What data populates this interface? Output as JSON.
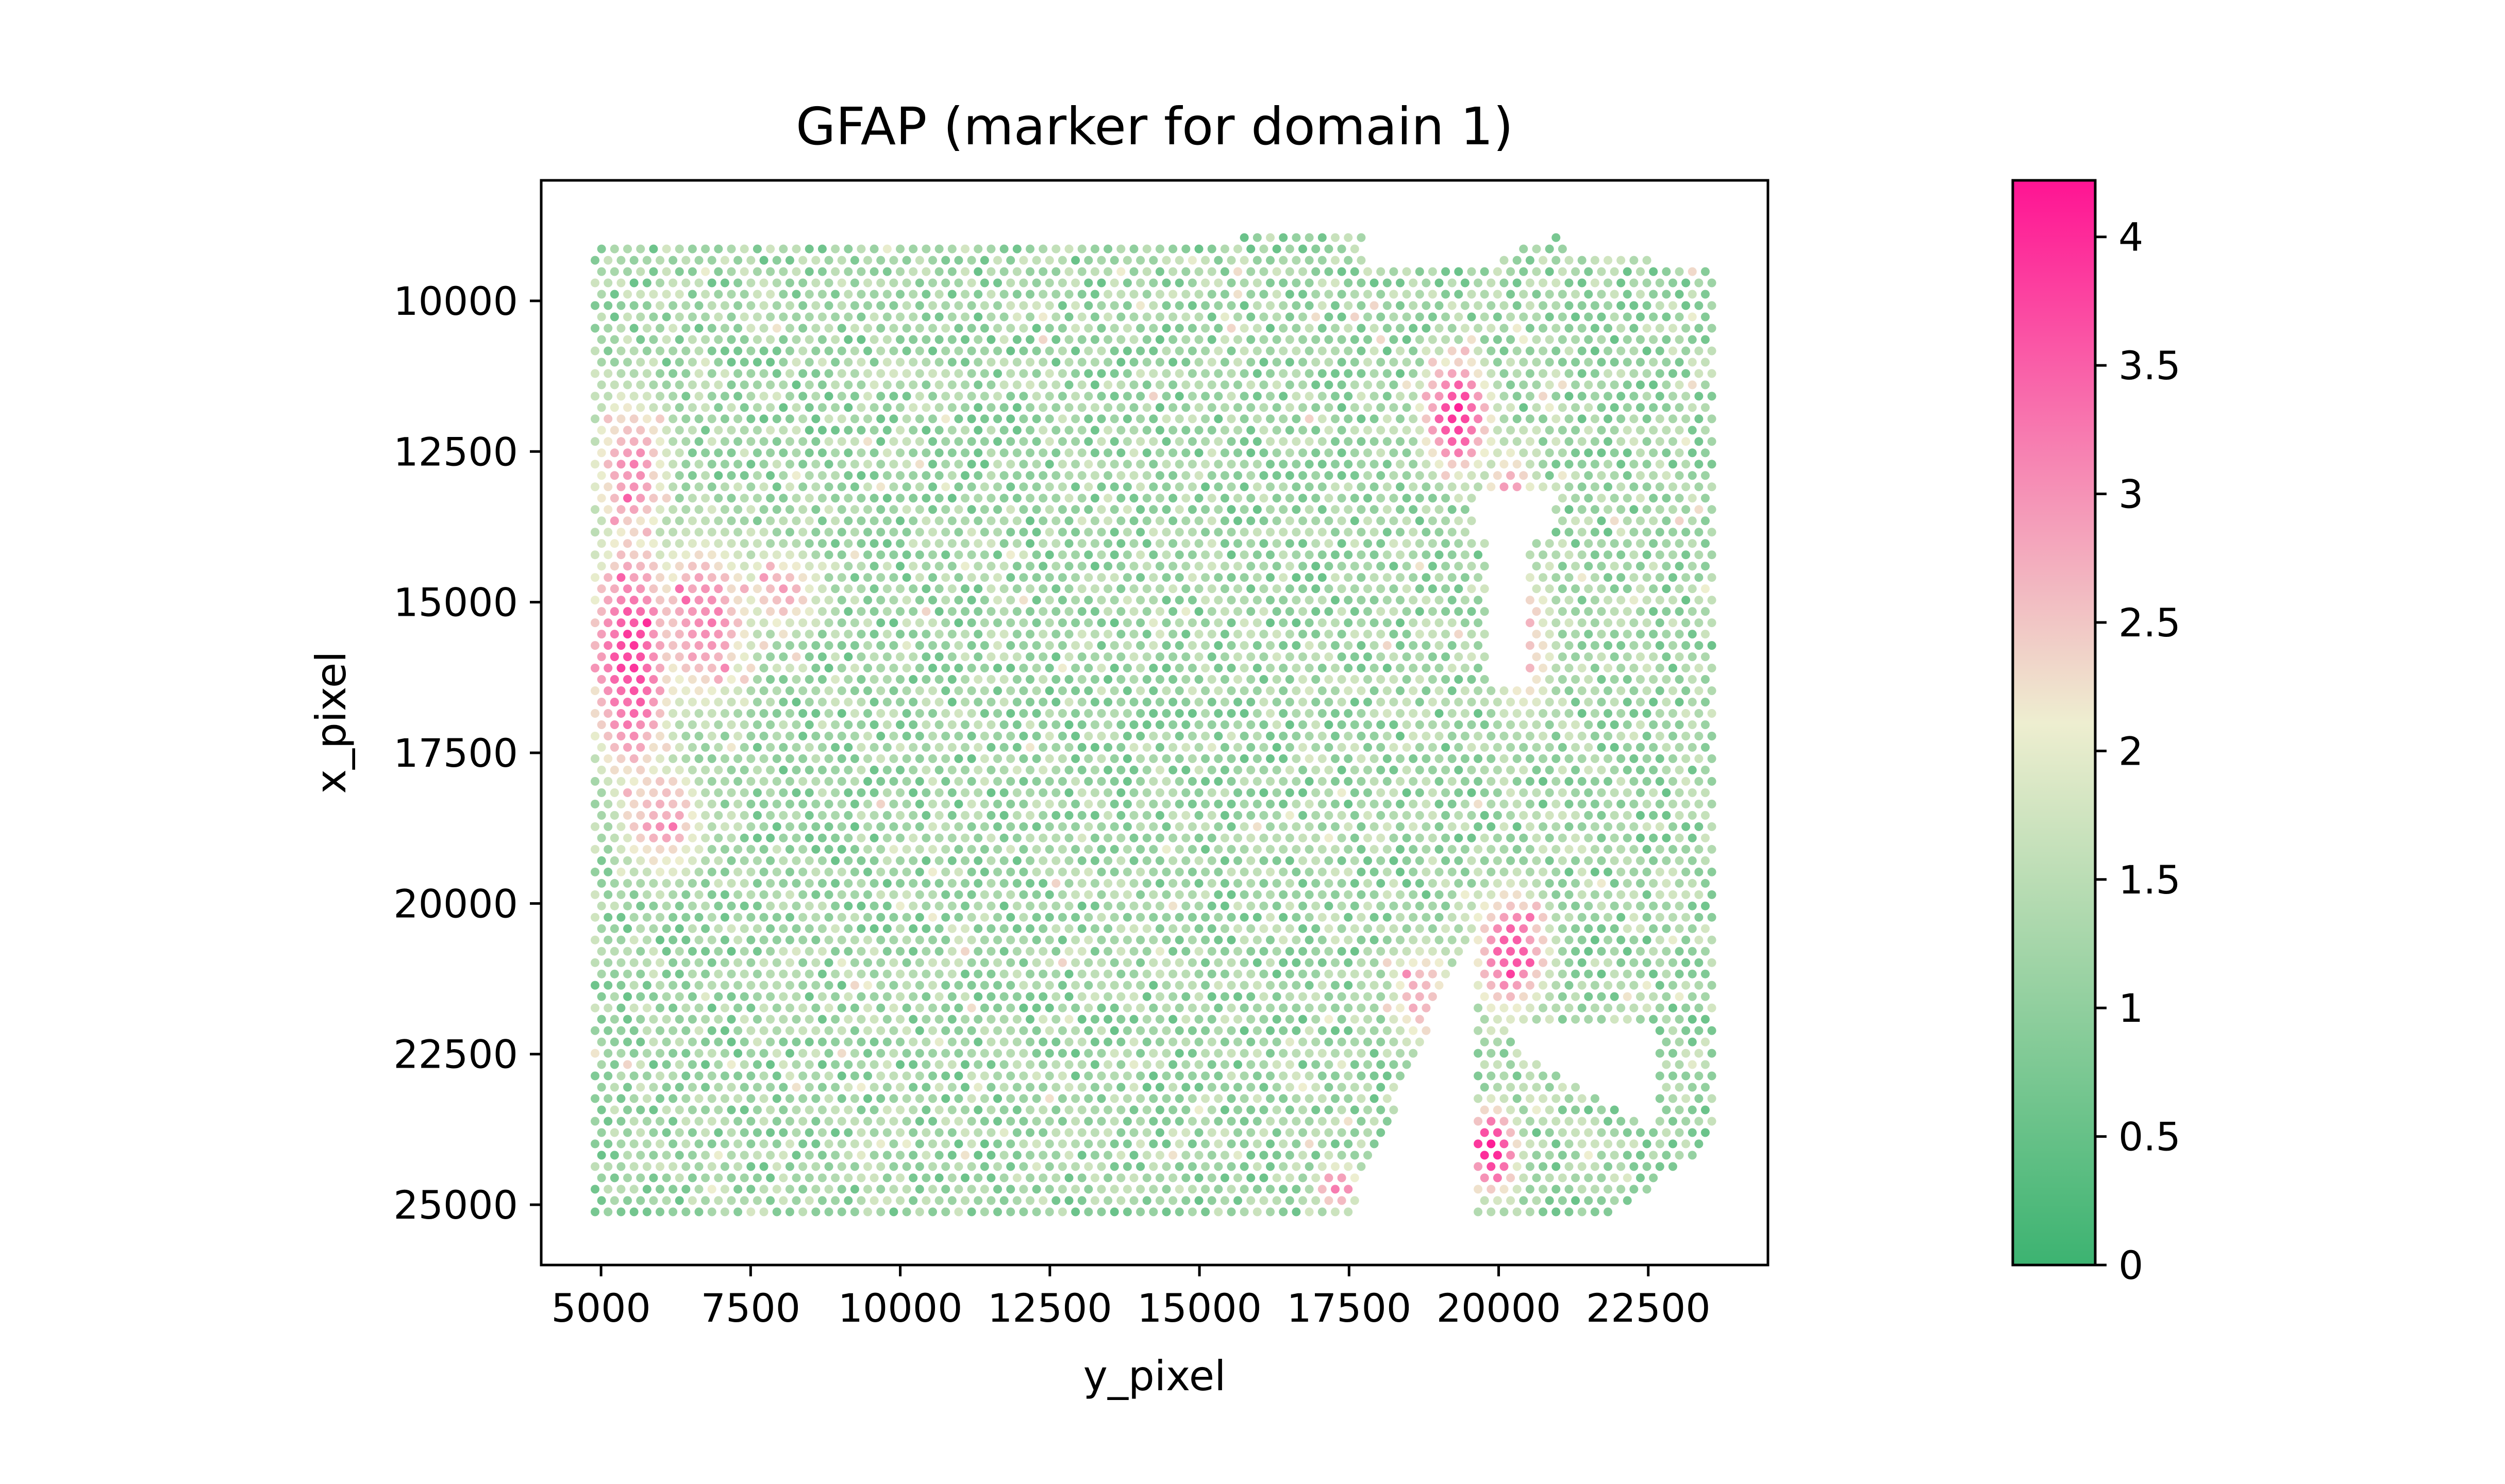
{
  "chart_data": {
    "type": "scatter",
    "title": "GFAP (marker for domain 1)",
    "xlabel": "y_pixel",
    "ylabel": "x_pixel",
    "xlim": [
      4000,
      24500
    ],
    "ylim": [
      26000,
      8000
    ],
    "y_inverted": true,
    "xticks": [
      5000,
      7500,
      10000,
      12500,
      15000,
      17500,
      20000,
      22500
    ],
    "xtick_labels": [
      "5000",
      "7500",
      "10000",
      "12500",
      "15000",
      "17500",
      "20000",
      "22500"
    ],
    "yticks": [
      10000,
      12500,
      15000,
      17500,
      20000,
      22500,
      25000
    ],
    "ytick_labels": [
      "10000",
      "12500",
      "15000",
      "17500",
      "20000",
      "22500",
      "25000"
    ],
    "grid": false,
    "colorbar": {
      "min": 0,
      "max": 4.22,
      "ticks": [
        0,
        0.5,
        1,
        1.5,
        2,
        2.5,
        3,
        3.5,
        4
      ],
      "tick_labels": [
        "0",
        "0.5",
        "1",
        "1.5",
        "2",
        "2.5",
        "3",
        "3.5",
        "4"
      ],
      "colors": [
        "#3cb371",
        "#eeeed0",
        "#ff1493"
      ]
    },
    "spot_layout": {
      "row_start": 8950,
      "row_end": 25200,
      "row_step": 188,
      "col_start": 4900,
      "col_end": 23600,
      "col_step": 217
    },
    "high_regions": [
      {
        "x": 5500,
        "y": 15900,
        "value": 3.6,
        "sx": 900,
        "sy": 2600
      },
      {
        "x": 6700,
        "y": 15300,
        "value": 3.0,
        "sx": 1100,
        "sy": 1800
      },
      {
        "x": 5500,
        "y": 12800,
        "value": 2.9,
        "sx": 800,
        "sy": 1700
      },
      {
        "x": 6000,
        "y": 18600,
        "value": 2.7,
        "sx": 1000,
        "sy": 1300
      },
      {
        "x": 19300,
        "y": 11900,
        "value": 3.8,
        "sx": 700,
        "sy": 1200
      },
      {
        "x": 20200,
        "y": 13300,
        "value": 3.0,
        "sx": 500,
        "sy": 1100
      },
      {
        "x": 20400,
        "y": 15700,
        "value": 2.5,
        "sx": 700,
        "sy": 1800
      },
      {
        "x": 20200,
        "y": 20800,
        "value": 3.4,
        "sx": 800,
        "sy": 1300
      },
      {
        "x": 19900,
        "y": 24100,
        "value": 4.0,
        "sx": 500,
        "sy": 900
      },
      {
        "x": 17300,
        "y": 24700,
        "value": 3.1,
        "sx": 500,
        "sy": 500
      },
      {
        "x": 18700,
        "y": 21500,
        "value": 2.6,
        "sx": 700,
        "sy": 1200
      },
      {
        "x": 8000,
        "y": 14800,
        "value": 2.6,
        "sx": 900,
        "sy": 900
      }
    ]
  }
}
